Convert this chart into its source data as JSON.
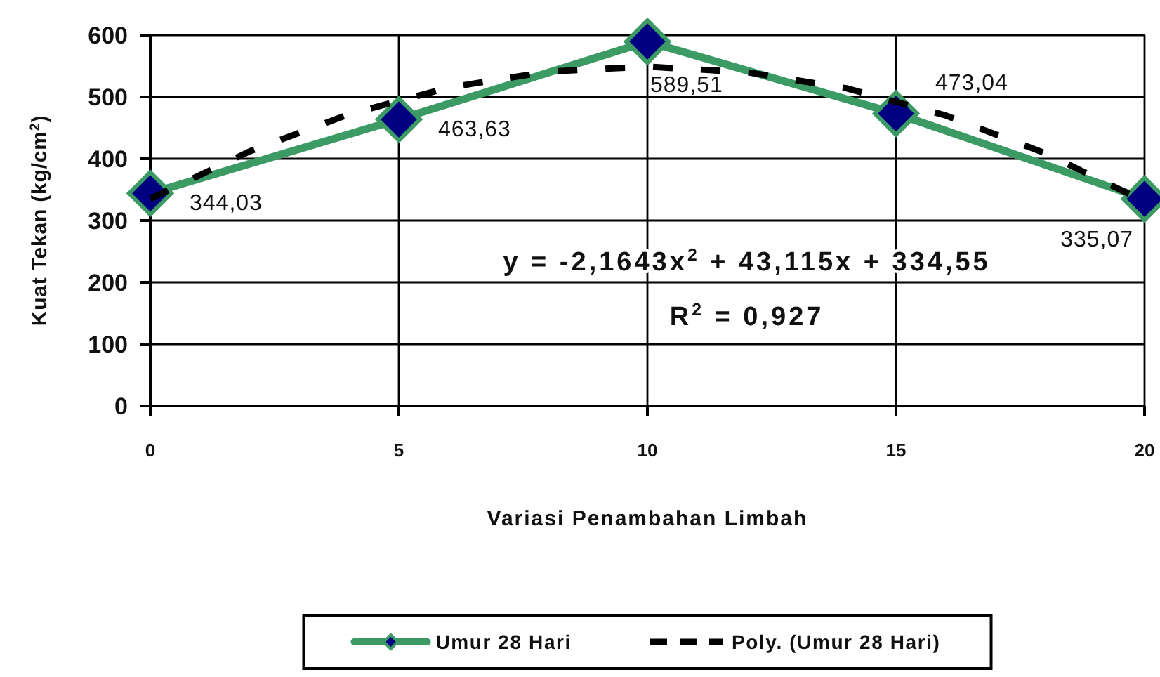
{
  "chart_data": {
    "type": "line",
    "xlabel": "Variasi Penambahan Limbah",
    "ylabel": "Kuat Tekan (kg/cm$^{2}$)",
    "x": [
      0,
      5,
      10,
      15,
      20
    ],
    "xlim": [
      0,
      20
    ],
    "xticks": [
      0,
      5,
      10,
      15,
      20
    ],
    "ylim": [
      0,
      600
    ],
    "yticks": [
      0,
      100,
      200,
      300,
      400,
      500,
      600
    ],
    "grid": true,
    "legend": "bottom",
    "series": [
      {
        "name": "Umur 28 Hari",
        "color": "#3c9a64",
        "colors": [
          "#000080",
          "#000080",
          "#000080",
          "#000080",
          "#000080"
        ],
        "marker": "diamond",
        "values": [
          344.03,
          463.63,
          589.51,
          473.04,
          335.07
        ],
        "value_labels": [
          "344,03",
          "463,63",
          "589,51",
          "473,04",
          "335,07"
        ]
      },
      {
        "type": "line",
        "name": "Poly. (Umur 28 Hari)",
        "color": "#000000",
        "marker": "none",
        "line_style": "dashed",
        "x": [
          0,
          2,
          4,
          6,
          8,
          10,
          12,
          14,
          16,
          18,
          20
        ],
        "values": [
          335,
          412,
          472,
          515,
          541,
          549,
          540,
          514,
          470,
          409,
          331
        ]
      }
    ],
    "annotations": [
      "y = -2,1643x$^{2}$ + 43,115x + 334,55",
      "R$^{2}$ = 0,927"
    ]
  }
}
